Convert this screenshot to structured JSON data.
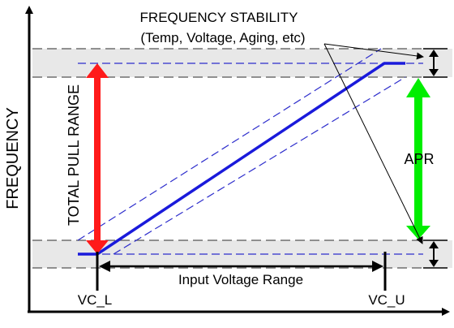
{
  "colors": {
    "background": "#ffffff",
    "axis": "#000000",
    "band_fill": "#e8e8e8",
    "band_line": "#555555",
    "transfer_line": "#1a1adb",
    "tolerance_line": "#2d2dcc",
    "total_pull_arrow": "#ff1a1a",
    "apr_arrow": "#00ee00",
    "dimension_line": "#000000"
  },
  "labels": {
    "frequency_stability_title": "FREQUENCY STABILITY",
    "frequency_stability_sub": "(Temp, Voltage, Aging, etc)",
    "y_axis": "FREQUENCY",
    "total_pull_range": "TOTAL PULL RANGE",
    "apr": "APR",
    "input_voltage_range": "Input Voltage Range",
    "vc_low": "VC_L",
    "vc_high": "VC_U"
  }
}
